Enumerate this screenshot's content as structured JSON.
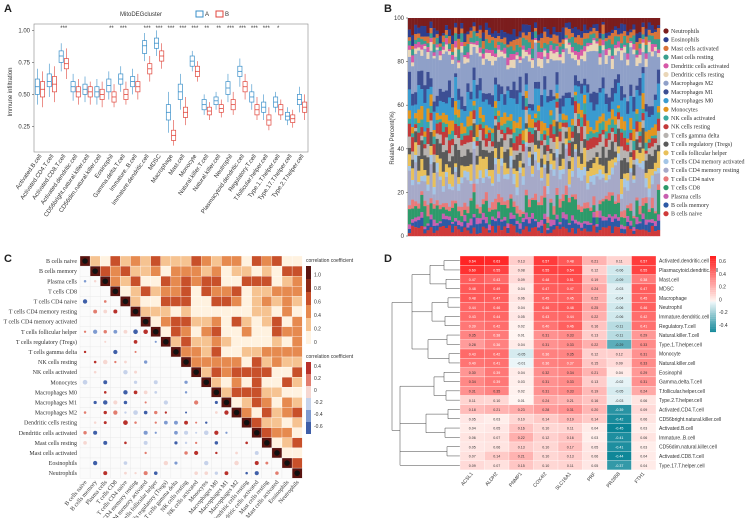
{
  "panels": {
    "a": "A",
    "b": "B",
    "c": "C",
    "d": "D"
  },
  "chart_data": [
    {
      "panel": "A",
      "type": "box",
      "legend_title": "MitoDEGcluster",
      "groups": [
        "A",
        "B"
      ],
      "colors": {
        "A": "#3a8fc9",
        "B": "#e0463c"
      },
      "ylabel": "Immune infiltration",
      "yticks": [
        "0.25",
        "0.50",
        "0.75",
        "1.00"
      ],
      "ylim": [
        0.05,
        1.05
      ],
      "categories": [
        "Activated.B.cell",
        "Activated.CD4.T.cell",
        "Activated.CD8.T.cell",
        "Activated.dendritic.cell",
        "CD56bright.natural.killer.cell",
        "CD56dim.natural.killer.cell",
        "Eosinophil",
        "Gamma.delta.T.cell",
        "Immature..B.cell",
        "Immature.dendritic.cell",
        "MDSC",
        "Macrophage",
        "Mast.cell",
        "Monocyte",
        "Natural.killer.T.cell",
        "Natural.killer.cell",
        "Neutrophil",
        "Plasmacytoid.dendritic.cell",
        "Regulatory.T.cell",
        "T.follicular.helper.cell",
        "Type.1.T.helper.cell",
        "Type.17.T.helper.cell",
        "Type.2.T.helper.cell"
      ],
      "significance": [
        "",
        "",
        "***",
        "",
        "",
        "",
        "**",
        "***",
        "",
        "***",
        "***",
        "***",
        "***",
        "***",
        "**",
        "**",
        "***",
        "***",
        "***",
        "***",
        "*",
        "",
        ""
      ],
      "box_A": [
        [
          0.42,
          0.5,
          0.56,
          0.62,
          0.7
        ],
        [
          0.48,
          0.56,
          0.6,
          0.66,
          0.74
        ],
        [
          0.68,
          0.75,
          0.8,
          0.84,
          0.9
        ],
        [
          0.45,
          0.52,
          0.56,
          0.6,
          0.66
        ],
        [
          0.44,
          0.5,
          0.54,
          0.58,
          0.64
        ],
        [
          0.42,
          0.48,
          0.52,
          0.56,
          0.62
        ],
        [
          0.46,
          0.52,
          0.57,
          0.62,
          0.68
        ],
        [
          0.52,
          0.58,
          0.62,
          0.66,
          0.72
        ],
        [
          0.5,
          0.56,
          0.6,
          0.64,
          0.7
        ],
        [
          0.76,
          0.82,
          0.88,
          0.92,
          0.98
        ],
        [
          0.8,
          0.86,
          0.9,
          0.94,
          1.0
        ],
        [
          0.2,
          0.3,
          0.36,
          0.42,
          0.52
        ],
        [
          0.38,
          0.46,
          0.52,
          0.58,
          0.66
        ],
        [
          0.68,
          0.72,
          0.76,
          0.8,
          0.84
        ],
        [
          0.34,
          0.38,
          0.42,
          0.46,
          0.5
        ],
        [
          0.38,
          0.42,
          0.45,
          0.48,
          0.52
        ],
        [
          0.44,
          0.5,
          0.55,
          0.6,
          0.66
        ],
        [
          0.56,
          0.64,
          0.68,
          0.72,
          0.78
        ],
        [
          0.38,
          0.44,
          0.48,
          0.52,
          0.58
        ],
        [
          0.3,
          0.36,
          0.4,
          0.44,
          0.5
        ],
        [
          0.36,
          0.4,
          0.44,
          0.48,
          0.52
        ],
        [
          0.26,
          0.3,
          0.33,
          0.36,
          0.4
        ],
        [
          0.36,
          0.42,
          0.46,
          0.5,
          0.56
        ]
      ],
      "box_B": [
        [
          0.4,
          0.48,
          0.54,
          0.6,
          0.68
        ],
        [
          0.44,
          0.52,
          0.58,
          0.64,
          0.72
        ],
        [
          0.62,
          0.7,
          0.74,
          0.78,
          0.86
        ],
        [
          0.42,
          0.48,
          0.52,
          0.56,
          0.62
        ],
        [
          0.42,
          0.48,
          0.52,
          0.56,
          0.6
        ],
        [
          0.4,
          0.46,
          0.5,
          0.54,
          0.6
        ],
        [
          0.4,
          0.44,
          0.48,
          0.52,
          0.58
        ],
        [
          0.42,
          0.46,
          0.5,
          0.54,
          0.6
        ],
        [
          0.46,
          0.52,
          0.56,
          0.6,
          0.66
        ],
        [
          0.6,
          0.66,
          0.7,
          0.74,
          0.8
        ],
        [
          0.7,
          0.76,
          0.8,
          0.84,
          0.9
        ],
        [
          0.1,
          0.14,
          0.18,
          0.22,
          0.3
        ],
        [
          0.26,
          0.32,
          0.36,
          0.4,
          0.48
        ],
        [
          0.6,
          0.64,
          0.68,
          0.72,
          0.76
        ],
        [
          0.3,
          0.34,
          0.37,
          0.4,
          0.44
        ],
        [
          0.32,
          0.36,
          0.39,
          0.42,
          0.46
        ],
        [
          0.34,
          0.38,
          0.42,
          0.46,
          0.52
        ],
        [
          0.46,
          0.52,
          0.56,
          0.6,
          0.66
        ],
        [
          0.3,
          0.34,
          0.38,
          0.42,
          0.48
        ],
        [
          0.22,
          0.26,
          0.3,
          0.34,
          0.4
        ],
        [
          0.3,
          0.34,
          0.38,
          0.42,
          0.46
        ],
        [
          0.24,
          0.28,
          0.31,
          0.34,
          0.38
        ],
        [
          0.3,
          0.36,
          0.4,
          0.44,
          0.5
        ]
      ]
    },
    {
      "panel": "B",
      "type": "stacked-bar",
      "ylabel": "Relative Percent(%)",
      "yticks": [
        "0",
        "20",
        "40",
        "60",
        "80",
        "100"
      ],
      "n_samples": 82,
      "cell_types": [
        "Neutrophils",
        "Eosinophils",
        "Mast cells activated",
        "Mast cells resting",
        "Dendritic cells activated",
        "Dendritic cells resting",
        "Macrophages M2",
        "Macrophages M1",
        "Macrophages M0",
        "Monocytes",
        "NK cells activated",
        "NK cells resting",
        "T cells gamma delta",
        "T cells regulatory (Tregs)",
        "T cells follicular helper",
        "T cells CD4 memory activated",
        "T cells CD4 memory resting",
        "T cells CD4 naive",
        "T cells CD8",
        "Plasma cells",
        "B cells memory",
        "B cells naive"
      ],
      "colors": [
        "#7b1d1d",
        "#2d3e8f",
        "#d9743a",
        "#3a9f8f",
        "#d658a8",
        "#e9d6b8",
        "#8fa0c8",
        "#3d4f94",
        "#3a9bd0",
        "#e2951f",
        "#3aa9a0",
        "#c33a3a",
        "#b7b3b0",
        "#5a5a5a",
        "#e8c05a",
        "#a4c6e6",
        "#a6a9c8",
        "#e87a7a",
        "#2d9a6a",
        "#c85fb0",
        "#2c5aa6",
        "#cf3a3a"
      ],
      "mean_fractions": [
        5,
        3,
        3,
        3,
        2,
        3,
        14,
        5,
        8,
        4,
        3,
        4,
        4,
        6,
        5,
        3,
        12,
        3,
        6,
        2,
        3,
        3
      ]
    },
    {
      "panel": "C",
      "type": "heatmap",
      "colorbar_title_1": "correlation coefficient",
      "colorbar_title_2": "correlation coefficient",
      "colorbar_ticks_1": [
        "0",
        "0.2",
        "0.4",
        "0.6",
        "0.8",
        "1.0"
      ],
      "colorbar_ticks_2": [
        "0.4",
        "0.2",
        "0",
        "-0.2",
        "-0.4",
        "-0.6"
      ],
      "cell_types": [
        "B cells naive",
        "B cells memory",
        "Plasma cells",
        "T cells CD8",
        "T cells CD4 naive",
        "T cells CD4 memory resting",
        "T cells CD4 memory activated",
        "T cells follicular helper",
        "T cells regulatory (Tregs)",
        "T cells gamma delta",
        "NK cells resting",
        "NK cells activated",
        "Monocytes",
        "Macrophages M0",
        "Macrophages M1",
        "Macrophages M2",
        "Dendritic cells resting",
        "Dendritic cells activated",
        "Mast cells resting",
        "Mast cells activated",
        "Eosinophils",
        "Neutrophils"
      ]
    },
    {
      "panel": "D",
      "type": "heatmap",
      "genes": [
        "ACSL1",
        "ALDH2",
        "PNMP1",
        "COX4I2",
        "SLC16A1",
        "PRF",
        "PR2658",
        "FTH1"
      ],
      "rows": [
        "Activated.dendritic.cell",
        "Plasmacytoid.dendritic.cell",
        "Mast.cell",
        "MDSC",
        "Macrophage",
        "Neutrophil",
        "Immature.dendritic.cell",
        "Regulatory.T.cell",
        "Natural.killer.T.cell",
        "Type.1.T.helper.cell",
        "Monocyte",
        "Natural.killer.cell",
        "Eosinophil",
        "Gamma.delta.T.cell",
        "T.follicular.helper.cell",
        "Type.2.T.helper.cell",
        "Activated.CD4.T.cell",
        "CD56bright.natural.killer.cell",
        "Activated.B.cell",
        "Immature..B.cell",
        "CD56dim.natural.killer.cell",
        "Activated.CD8.T.cell",
        "Type.17.T.helper.cell"
      ],
      "colorbar_ticks": [
        "0.6",
        "0.4",
        "0.2",
        "0",
        "-0.2",
        "-0.4"
      ],
      "values": [
        [
          0.64,
          0.63,
          0.13,
          0.57,
          0.48,
          0.21,
          0.11,
          0.57
        ],
        [
          0.6,
          0.55,
          0.08,
          0.55,
          0.54,
          0.12,
          -0.06,
          0.55
        ],
        [
          0.47,
          0.43,
          0.09,
          0.48,
          0.51,
          0.19,
          -0.09,
          0.38
        ],
        [
          0.48,
          0.49,
          0.04,
          0.47,
          0.47,
          0.24,
          -0.03,
          0.47
        ],
        [
          0.48,
          0.47,
          0.06,
          0.45,
          0.45,
          0.22,
          -0.04,
          0.45
        ],
        [
          0.44,
          0.46,
          0.04,
          0.46,
          0.48,
          0.25,
          -0.06,
          0.46
        ],
        [
          0.43,
          0.44,
          0.05,
          0.43,
          0.44,
          0.22,
          -0.06,
          0.42
        ],
        [
          0.39,
          0.42,
          0.02,
          0.4,
          0.46,
          0.16,
          -0.11,
          0.41
        ],
        [
          0.35,
          0.38,
          0.01,
          0.31,
          0.33,
          0.13,
          -0.11,
          0.29
        ],
        [
          0.28,
          0.36,
          0.04,
          0.31,
          0.33,
          0.22,
          -0.29,
          0.33
        ],
        [
          0.43,
          0.42,
          -0.05,
          0.36,
          0.35,
          0.12,
          0.12,
          0.31
        ],
        [
          0.4,
          0.41,
          -0.01,
          0.36,
          0.37,
          0.15,
          0.09,
          0.33
        ],
        [
          0.3,
          0.39,
          0.04,
          0.32,
          0.34,
          0.21,
          0.04,
          0.29
        ],
        [
          0.34,
          0.39,
          0.03,
          0.31,
          0.33,
          0.13,
          -0.02,
          0.31
        ],
        [
          0.31,
          0.35,
          0.02,
          0.31,
          0.33,
          0.19,
          -0.05,
          0.24
        ],
        [
          0.11,
          0.1,
          0.01,
          0.24,
          0.21,
          0.16,
          -0.03,
          0.06
        ],
        [
          0.18,
          0.21,
          0.23,
          0.28,
          0.31,
          0.2,
          -0.39,
          0.09
        ],
        [
          0.05,
          0.03,
          0.1,
          0.14,
          0.19,
          0.14,
          -0.42,
          0.06
        ],
        [
          0.04,
          0.05,
          0.16,
          0.1,
          0.11,
          0.04,
          -0.45,
          0.03
        ],
        [
          0.06,
          0.07,
          0.22,
          0.12,
          0.16,
          0.03,
          -0.41,
          0.06
        ],
        [
          0.05,
          0.06,
          0.13,
          0.1,
          0.17,
          0.05,
          -0.41,
          0.03
        ],
        [
          0.07,
          0.14,
          0.21,
          0.1,
          0.13,
          0.06,
          -0.44,
          0.04
        ],
        [
          0.09,
          0.07,
          0.15,
          0.1,
          0.11,
          0.05,
          -0.37,
          0.04
        ]
      ]
    }
  ]
}
